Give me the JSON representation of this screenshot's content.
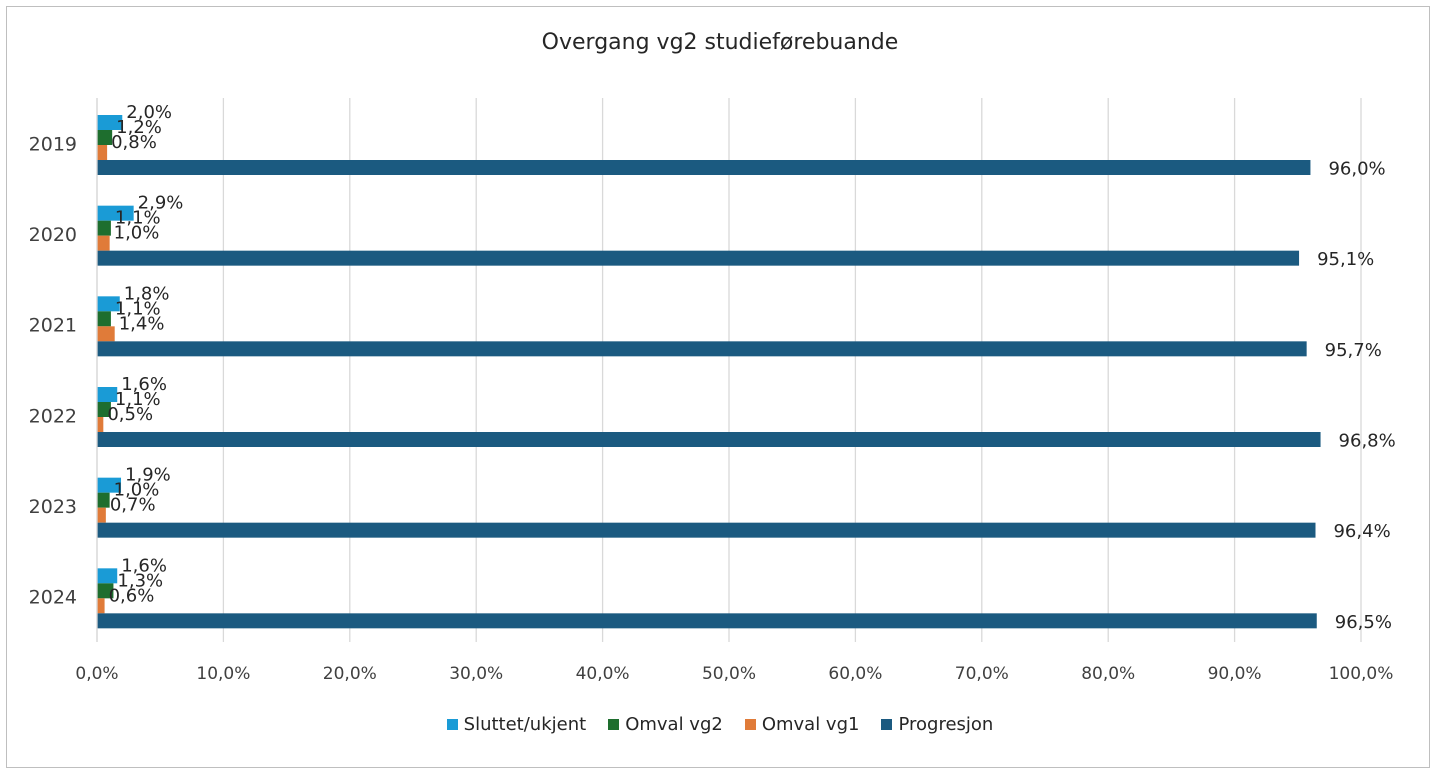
{
  "chart_data": {
    "type": "bar",
    "orientation": "horizontal",
    "title": "Overgang vg2 studieførebuande",
    "categories": [
      "2019",
      "2020",
      "2021",
      "2022",
      "2023",
      "2024"
    ],
    "series": [
      {
        "name": "Sluttet/ukjent",
        "color": "#1a9bd6",
        "values": [
          2.0,
          2.9,
          1.8,
          1.6,
          1.9,
          1.6
        ],
        "labels": [
          "2,0%",
          "2,9%",
          "1,8%",
          "1,6%",
          "1,9%",
          "1,6%"
        ]
      },
      {
        "name": "Omval vg2",
        "color": "#1e6e2e",
        "values": [
          1.2,
          1.1,
          1.1,
          1.1,
          1.0,
          1.3
        ],
        "labels": [
          "1,2%",
          "1,1%",
          "1,1%",
          "1,1%",
          "1,0%",
          "1,3%"
        ]
      },
      {
        "name": "Omval vg1",
        "color": "#e07b39",
        "values": [
          0.8,
          1.0,
          1.4,
          0.5,
          0.7,
          0.6
        ],
        "labels": [
          "0,8%",
          "1,0%",
          "1,4%",
          "0,5%",
          "0,7%",
          "0,6%"
        ]
      },
      {
        "name": "Progresjon",
        "color": "#1b5a80",
        "values": [
          96.0,
          95.1,
          95.7,
          96.8,
          96.4,
          96.5
        ],
        "labels": [
          "96,0%",
          "95,1%",
          "95,7%",
          "96,8%",
          "96,4%",
          "96,5%"
        ]
      }
    ],
    "xlim": [
      0,
      100
    ],
    "xticks": [
      "0,0%",
      "10,0%",
      "20,0%",
      "30,0%",
      "40,0%",
      "50,0%",
      "60,0%",
      "70,0%",
      "80,0%",
      "90,0%",
      "100,0%"
    ],
    "grid": "vertical",
    "legend_position": "bottom"
  }
}
